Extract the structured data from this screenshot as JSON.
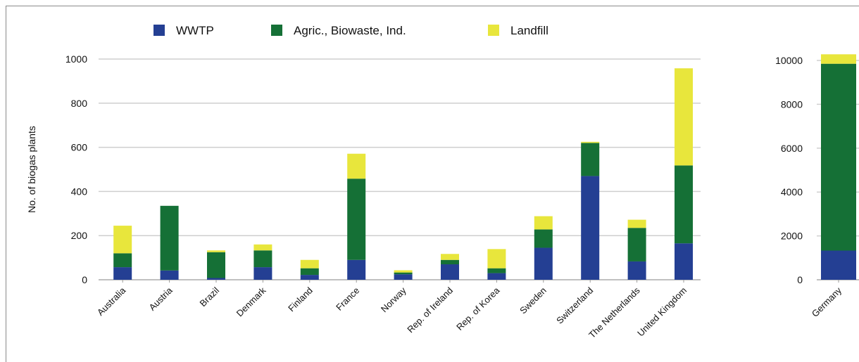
{
  "chart_data": [
    {
      "type": "bar",
      "stacked": true,
      "ylabel": "No. of biogas plants",
      "ylim": [
        0,
        1000
      ],
      "yticks": [
        0,
        200,
        400,
        600,
        800,
        1000
      ],
      "grid": true,
      "legend": "top",
      "categories": [
        "Australia",
        "Austria",
        "Brazil",
        "Denmark",
        "Finland",
        "France",
        "Norway",
        "Rep. of Ireland",
        "Rep. of Korea",
        "Sweden",
        "Switzerland",
        "The Netherlands",
        "United Kingdom"
      ],
      "series": [
        {
          "name": "WWTP",
          "color": "#243f93",
          "values": [
            57,
            42,
            8,
            57,
            22,
            90,
            25,
            70,
            30,
            145,
            470,
            83,
            165
          ]
        },
        {
          "name": "Agric., Biowaste, Ind.",
          "color": "#157036",
          "values": [
            63,
            293,
            117,
            76,
            30,
            368,
            8,
            20,
            22,
            83,
            150,
            152,
            353
          ]
        },
        {
          "name": "Landfill",
          "color": "#e8e63c",
          "values": [
            125,
            0,
            8,
            27,
            38,
            113,
            10,
            27,
            87,
            60,
            5,
            37,
            440
          ]
        }
      ]
    },
    {
      "type": "bar",
      "stacked": true,
      "ylim": [
        0,
        10000
      ],
      "yticks": [
        0,
        2000,
        4000,
        6000,
        8000,
        10000
      ],
      "grid": true,
      "categories": [
        "Germany"
      ],
      "series": [
        {
          "name": "WWTP",
          "color": "#243f93",
          "values": [
            1330
          ]
        },
        {
          "name": "Agric., Biowaste, Ind.",
          "color": "#157036",
          "values": [
            8520
          ]
        },
        {
          "name": "Landfill",
          "color": "#e8e63c",
          "values": [
            430
          ]
        }
      ]
    }
  ]
}
